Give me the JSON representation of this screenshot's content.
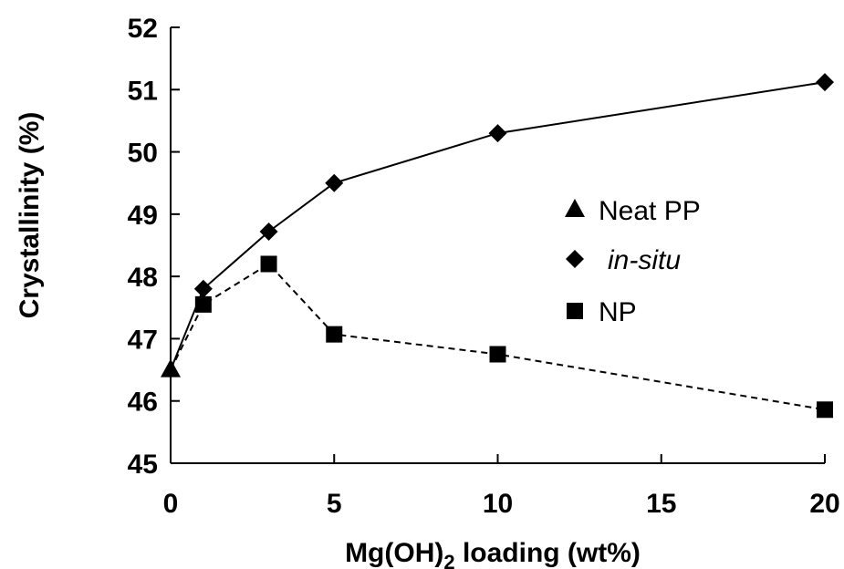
{
  "chart_data": {
    "type": "line",
    "xlabel": {
      "main": "Mg(OH)",
      "sub": "2",
      "rest": " loading (wt%)"
    },
    "ylabel": "Crystallinity (%)",
    "xlim": [
      0,
      20
    ],
    "ylim": [
      45,
      52
    ],
    "xticks": [
      0,
      5,
      10,
      15,
      20
    ],
    "yticks": [
      45,
      46,
      47,
      48,
      49,
      50,
      51,
      52
    ],
    "grid": false,
    "legend_position": "center-right",
    "series": [
      {
        "name": "Neat PP",
        "marker": "triangle",
        "line": "none",
        "x": [
          0
        ],
        "y": [
          46.5
        ]
      },
      {
        "name": "in-situ",
        "marker": "diamond",
        "line": "solid",
        "x": [
          0,
          1,
          3,
          5,
          10,
          20
        ],
        "y": [
          46.5,
          47.8,
          48.72,
          49.5,
          50.3,
          51.12
        ]
      },
      {
        "name": "NP",
        "marker": "square",
        "line": "dashed",
        "x": [
          0,
          1,
          3,
          5,
          10,
          20
        ],
        "y": [
          46.5,
          47.55,
          48.2,
          47.07,
          46.75,
          45.86
        ]
      }
    ],
    "colors": {
      "axis": "#000000",
      "series": "#000000",
      "background": "#ffffff"
    }
  }
}
